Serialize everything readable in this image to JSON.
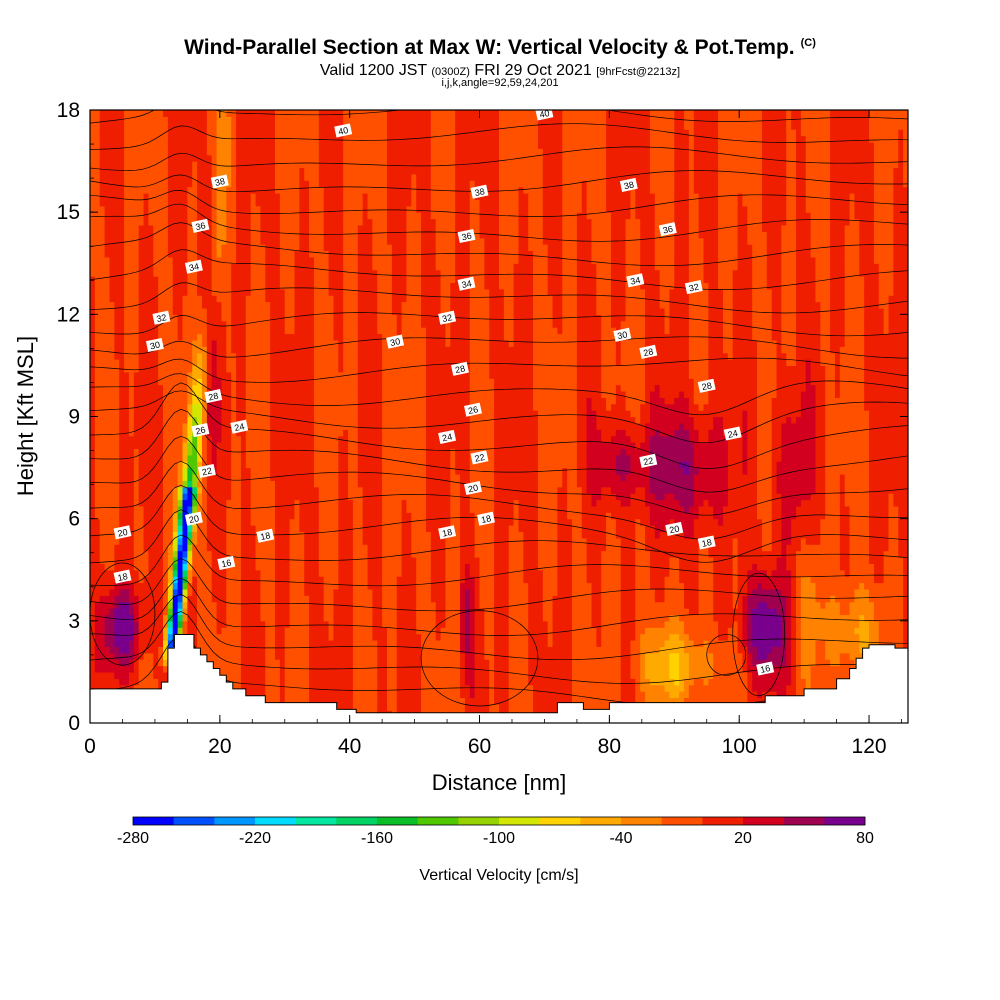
{
  "header": {
    "title": "Wind-Parallel Section at Max W: Vertical Velocity & Pot.Temp.",
    "copyright": "(C)",
    "valid_a": "Valid 1200 JST",
    "valid_b": "(0300Z)",
    "valid_c": "FRI 29 Oct 2021",
    "valid_d": "[9hrFcst@2213z]",
    "indices": "i,j,k,angle=92,59,24,201"
  },
  "chart_data": {
    "type": "heatmap",
    "xlabel": "Distance [nm]",
    "ylabel": "Height [Kft MSL]",
    "xlim": [
      0,
      126
    ],
    "ylim": [
      0,
      18
    ],
    "x_ticks": [
      "0",
      "20",
      "40",
      "60",
      "80",
      "100",
      "120"
    ],
    "y_ticks": [
      "0",
      "3",
      "6",
      "9",
      "12",
      "15",
      "18"
    ],
    "colorbar": {
      "title": "Vertical Velocity [cm/s]",
      "tick_labels": [
        "-280",
        "-220",
        "-160",
        "-100",
        "-40",
        "20",
        "80"
      ],
      "levels": [
        -280,
        -260,
        -240,
        -220,
        -200,
        -180,
        -160,
        -140,
        -120,
        -100,
        -80,
        -60,
        -40,
        -20,
        0,
        20,
        40,
        60,
        80
      ],
      "colors": [
        "#0000ff",
        "#0050ff",
        "#0096ff",
        "#00dcff",
        "#00e6a0",
        "#00d264",
        "#0abe28",
        "#50c800",
        "#96d200",
        "#d2e600",
        "#ffd200",
        "#ffaa00",
        "#ff8200",
        "#ff5000",
        "#f01e00",
        "#d2001e",
        "#a00050",
        "#78008c"
      ]
    },
    "background_value_cm_s": 0,
    "features": [
      {
        "name": "updraft core",
        "x": 15,
        "y_from": 1.5,
        "y_to": 18,
        "value": -280
      },
      {
        "name": "downdraft left",
        "x": 5,
        "y": 2.8,
        "value": 80
      },
      {
        "name": "downdraft right",
        "x": 104,
        "y": 2.8,
        "value": 80
      },
      {
        "name": "downdraft mid",
        "x": 92,
        "y": 7.5,
        "value": 60
      }
    ],
    "terrain": [
      [
        0,
        1
      ],
      [
        11,
        1
      ],
      [
        11,
        1.2
      ],
      [
        12,
        1.2
      ],
      [
        12,
        2.2
      ],
      [
        13,
        2.2
      ],
      [
        13,
        2.6
      ],
      [
        16,
        2.6
      ],
      [
        16,
        2.2
      ],
      [
        17,
        2.2
      ],
      [
        17,
        2
      ],
      [
        18,
        2
      ],
      [
        18,
        1.8
      ],
      [
        19,
        1.8
      ],
      [
        19,
        1.6
      ],
      [
        20,
        1.6
      ],
      [
        20,
        1.4
      ],
      [
        21,
        1.4
      ],
      [
        21,
        1.2
      ],
      [
        22,
        1.2
      ],
      [
        22,
        1
      ],
      [
        24,
        1
      ],
      [
        24,
        0.8
      ],
      [
        27,
        0.8
      ],
      [
        27,
        0.6
      ],
      [
        38,
        0.6
      ],
      [
        38,
        0.4
      ],
      [
        41,
        0.4
      ],
      [
        41,
        0.3
      ],
      [
        72,
        0.3
      ],
      [
        72,
        0.6
      ],
      [
        76,
        0.6
      ],
      [
        76,
        0.4
      ],
      [
        80,
        0.4
      ],
      [
        80,
        0.6
      ],
      [
        104,
        0.6
      ],
      [
        104,
        0.8
      ],
      [
        110,
        0.8
      ],
      [
        110,
        1
      ],
      [
        115,
        1
      ],
      [
        115,
        1.3
      ],
      [
        117,
        1.3
      ],
      [
        117,
        1.6
      ],
      [
        118,
        1.6
      ],
      [
        118,
        1.9
      ],
      [
        119,
        1.9
      ],
      [
        119,
        2.2
      ],
      [
        120,
        2.2
      ],
      [
        120,
        2.3
      ],
      [
        124,
        2.3
      ],
      [
        124,
        2.2
      ],
      [
        126,
        2.2
      ]
    ],
    "contour_interval_K": 2,
    "contour_labels": [
      {
        "text": "40",
        "x": 39,
        "y": 17.4
      },
      {
        "text": "40",
        "x": 70,
        "y": 17.9
      },
      {
        "text": "38",
        "x": 20,
        "y": 15.9
      },
      {
        "text": "38",
        "x": 60,
        "y": 15.6
      },
      {
        "text": "38",
        "x": 83,
        "y": 15.8
      },
      {
        "text": "36",
        "x": 17,
        "y": 14.6
      },
      {
        "text": "36",
        "x": 58,
        "y": 14.3
      },
      {
        "text": "36",
        "x": 89,
        "y": 14.5
      },
      {
        "text": "34",
        "x": 16,
        "y": 13.4
      },
      {
        "text": "34",
        "x": 58,
        "y": 12.9
      },
      {
        "text": "34",
        "x": 84,
        "y": 13
      },
      {
        "text": "32",
        "x": 11,
        "y": 11.9
      },
      {
        "text": "32",
        "x": 55,
        "y": 11.9
      },
      {
        "text": "32",
        "x": 93,
        "y": 12.8
      },
      {
        "text": "30",
        "x": 10,
        "y": 11.1
      },
      {
        "text": "30",
        "x": 47,
        "y": 11.2
      },
      {
        "text": "30",
        "x": 82,
        "y": 11.4
      },
      {
        "text": "28",
        "x": 57,
        "y": 10.4
      },
      {
        "text": "28",
        "x": 86,
        "y": 10.9
      },
      {
        "text": "28",
        "x": 19,
        "y": 9.6
      },
      {
        "text": "28",
        "x": 95,
        "y": 9.9
      },
      {
        "text": "26",
        "x": 17,
        "y": 8.6
      },
      {
        "text": "26",
        "x": 59,
        "y": 9.2
      },
      {
        "text": "24",
        "x": 23,
        "y": 8.7
      },
      {
        "text": "24",
        "x": 55,
        "y": 8.4
      },
      {
        "text": "24",
        "x": 99,
        "y": 8.5
      },
      {
        "text": "22",
        "x": 18,
        "y": 7.4
      },
      {
        "text": "22",
        "x": 60,
        "y": 7.8
      },
      {
        "text": "22",
        "x": 86,
        "y": 7.7
      },
      {
        "text": "20",
        "x": 16,
        "y": 6
      },
      {
        "text": "20",
        "x": 59,
        "y": 6.9
      },
      {
        "text": "20",
        "x": 5,
        "y": 5.6
      },
      {
        "text": "20",
        "x": 90,
        "y": 5.7
      },
      {
        "text": "18",
        "x": 27,
        "y": 5.5
      },
      {
        "text": "18",
        "x": 61,
        "y": 6
      },
      {
        "text": "18",
        "x": 55,
        "y": 5.6
      },
      {
        "text": "18",
        "x": 95,
        "y": 5.3
      },
      {
        "text": "18",
        "x": 5,
        "y": 4.3
      },
      {
        "text": "16",
        "x": 21,
        "y": 4.7
      },
      {
        "text": "16",
        "x": 104,
        "y": 1.6
      }
    ]
  }
}
